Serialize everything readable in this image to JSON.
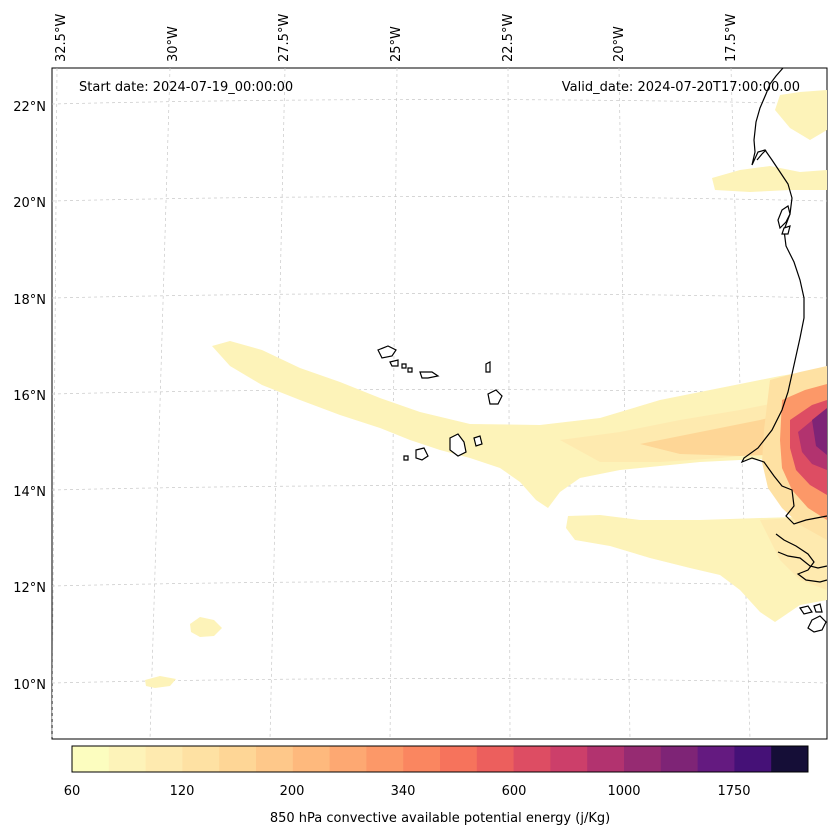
{
  "map": {
    "start_date_text": "Start date: 2024-07-19_00:00:00",
    "valid_date_text": "Valid_date: 2024-07-20T17:00:00.00",
    "lon_labels": [
      "32.5°W",
      "30°W",
      "27.5°W",
      "25°W",
      "22.5°W",
      "20°W",
      "17.5°W"
    ],
    "lat_labels": [
      "22°N",
      "20°N",
      "18°N",
      "16°N",
      "14°N",
      "12°N",
      "10°N"
    ]
  },
  "colorbar": {
    "label": "850 hPa convective available potential energy (j/Kg)",
    "tick_labels": [
      "60",
      "120",
      "200",
      "340",
      "600",
      "1000",
      "1750"
    ],
    "colors": [
      "#fcfdbf",
      "#fdf3b9",
      "#feeaaf",
      "#fee1a3",
      "#fed696",
      "#fec88a",
      "#feb97d",
      "#fda872",
      "#fc9868",
      "#fa8660",
      "#f6735c",
      "#ec5f5d",
      "#dd4d63",
      "#cc3f6a",
      "#b2336f",
      "#962b72",
      "#7e2476",
      "#641a80",
      "#451177",
      "#150e37"
    ]
  },
  "legend_colors": {
    "coastline": "#000000",
    "gridline": "#c8c8c8"
  }
}
